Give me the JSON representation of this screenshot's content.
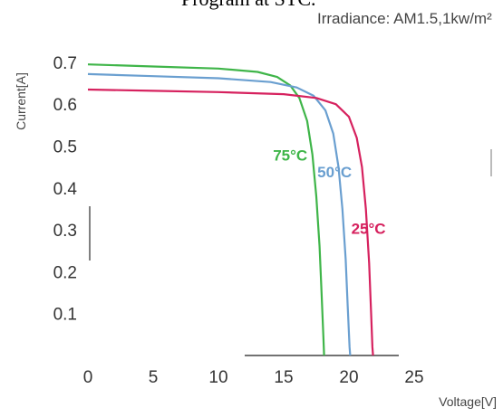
{
  "chart_data": {
    "type": "line",
    "title": "Program at STC.",
    "subtitle": "Irradiance: AM1.5,1kw/m²",
    "xlabel": "Voltage[V]",
    "ylabel": "Current[A]",
    "xlim": [
      0,
      25
    ],
    "ylim": [
      0,
      0.72
    ],
    "x_ticks": [
      "0",
      "5",
      "10",
      "15",
      "20",
      "25"
    ],
    "y_ticks": [
      "0.1",
      "0.2",
      "0.3",
      "0.4",
      "0.5",
      "0.6",
      "0.7"
    ],
    "series": [
      {
        "name": "75°C",
        "color": "#3fb549",
        "points": [
          [
            0,
            0.695
          ],
          [
            5,
            0.69
          ],
          [
            10,
            0.685
          ],
          [
            13,
            0.677
          ],
          [
            14.5,
            0.665
          ],
          [
            15.5,
            0.645
          ],
          [
            16.2,
            0.615
          ],
          [
            16.8,
            0.56
          ],
          [
            17.2,
            0.48
          ],
          [
            17.5,
            0.38
          ],
          [
            17.75,
            0.26
          ],
          [
            17.9,
            0.15
          ],
          [
            18.05,
            0.04
          ],
          [
            18.1,
            0.0
          ]
        ]
      },
      {
        "name": "50°C",
        "color": "#6a9fd0",
        "points": [
          [
            0,
            0.672
          ],
          [
            5,
            0.667
          ],
          [
            10,
            0.662
          ],
          [
            14,
            0.653
          ],
          [
            16,
            0.64
          ],
          [
            17.3,
            0.62
          ],
          [
            18.2,
            0.585
          ],
          [
            18.8,
            0.53
          ],
          [
            19.2,
            0.45
          ],
          [
            19.5,
            0.35
          ],
          [
            19.75,
            0.23
          ],
          [
            19.9,
            0.12
          ],
          [
            20.05,
            0.02
          ],
          [
            20.1,
            0.0
          ]
        ]
      },
      {
        "name": "25°C",
        "color": "#d6215e",
        "points": [
          [
            0,
            0.635
          ],
          [
            5,
            0.632
          ],
          [
            10,
            0.629
          ],
          [
            15,
            0.624
          ],
          [
            17.5,
            0.615
          ],
          [
            19,
            0.6
          ],
          [
            20,
            0.57
          ],
          [
            20.6,
            0.52
          ],
          [
            21.0,
            0.45
          ],
          [
            21.3,
            0.35
          ],
          [
            21.55,
            0.22
          ],
          [
            21.7,
            0.1
          ],
          [
            21.8,
            0.02
          ],
          [
            21.85,
            0.0
          ]
        ]
      }
    ],
    "legend": "inline labels"
  }
}
